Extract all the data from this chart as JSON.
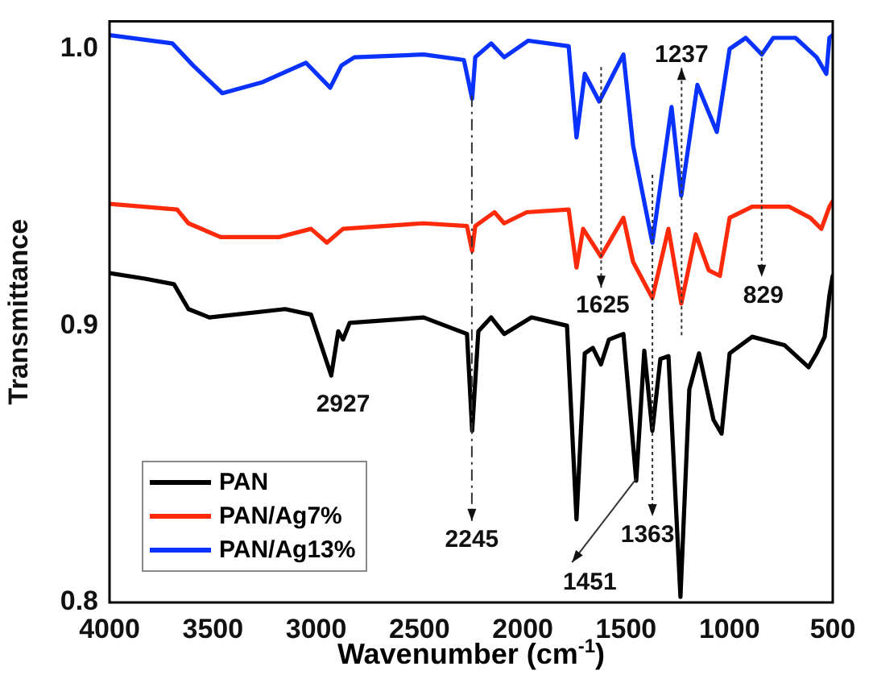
{
  "chart_data": {
    "type": "line",
    "xlabel": "Wavenumber (cm$^{-1}$)",
    "ylabel": "Transmittance",
    "xlim": [
      4000,
      500
    ],
    "xticks": [
      4000,
      3500,
      3000,
      2500,
      2000,
      1500,
      1000,
      500
    ],
    "ylim": [
      0.8,
      1.01
    ],
    "yticks": [
      0.8,
      0.9,
      {
        "value": 1.0,
        "label": "1.0"
      }
    ],
    "grid": false,
    "legend": "bottom left",
    "marker": "none",
    "series": [
      {
        "name": "PAN",
        "color": "#000000",
        "x": [
          4000,
          3829,
          3688,
          3618,
          3517,
          3150,
          3025,
          2927,
          2893,
          2870,
          2838,
          2480,
          2270,
          2245,
          2215,
          2153,
          2090,
          1958,
          1786,
          1740,
          1700,
          1661,
          1622,
          1583,
          1513,
          1451,
          1412,
          1373,
          1334,
          1295,
          1237,
          1194,
          1147,
          1077,
          1038,
          999,
          890,
          734,
          617,
          578,
          539,
          516,
          500
        ],
        "values": [
          0.919,
          0.917,
          0.915,
          0.906,
          0.903,
          0.906,
          0.904,
          0.882,
          0.898,
          0.895,
          0.901,
          0.903,
          0.897,
          0.862,
          0.898,
          0.903,
          0.897,
          0.903,
          0.9,
          0.83,
          0.89,
          0.892,
          0.886,
          0.895,
          0.897,
          0.844,
          0.891,
          0.862,
          0.888,
          0.889,
          0.802,
          0.877,
          0.89,
          0.866,
          0.861,
          0.89,
          0.896,
          0.893,
          0.885,
          0.89,
          0.896,
          0.911,
          0.918
        ]
      },
      {
        "name": "PAN/Ag7%",
        "color": "#ff2a0a",
        "x": [
          4000,
          3673,
          3618,
          3462,
          3181,
          3025,
          2948,
          2870,
          2480,
          2270,
          2245,
          2230,
          2137,
          2090,
          1981,
          1778,
          1740,
          1708,
          1622,
          1513,
          1466,
          1373,
          1295,
          1233,
          1163,
          1100,
          1046,
          999,
          890,
          711,
          609,
          555,
          516,
          500
        ],
        "values": [
          0.944,
          0.942,
          0.937,
          0.932,
          0.932,
          0.935,
          0.93,
          0.935,
          0.937,
          0.936,
          0.927,
          0.936,
          0.941,
          0.937,
          0.941,
          0.942,
          0.921,
          0.935,
          0.925,
          0.939,
          0.923,
          0.91,
          0.935,
          0.908,
          0.933,
          0.92,
          0.918,
          0.939,
          0.943,
          0.943,
          0.939,
          0.935,
          0.943,
          0.945
        ]
      },
      {
        "name": "PAN/Ag13%",
        "color": "#0a32ff",
        "x": [
          4000,
          3696,
          3595,
          3454,
          3259,
          3049,
          2932,
          2878,
          2815,
          2480,
          2285,
          2245,
          2230,
          2153,
          2090,
          1973,
          1778,
          1740,
          1700,
          1630,
          1513,
          1466,
          1373,
          1280,
          1233,
          1155,
          1061,
          999,
          921,
          843,
          788,
          680,
          578,
          531,
          516,
          500
        ],
        "values": [
          1.005,
          1.002,
          0.994,
          0.984,
          0.988,
          0.995,
          0.986,
          0.994,
          0.997,
          0.998,
          0.996,
          0.982,
          0.997,
          1.002,
          0.997,
          1.003,
          1.001,
          0.968,
          0.991,
          0.981,
          0.998,
          0.965,
          0.93,
          0.979,
          0.947,
          0.987,
          0.97,
          1.0,
          1.004,
          0.998,
          1.004,
          1.004,
          0.997,
          0.991,
          1.004,
          1.005
        ]
      }
    ],
    "annotations": [
      "2927",
      "2245",
      "1625",
      "1237",
      "829",
      "1363",
      "1451"
    ]
  }
}
